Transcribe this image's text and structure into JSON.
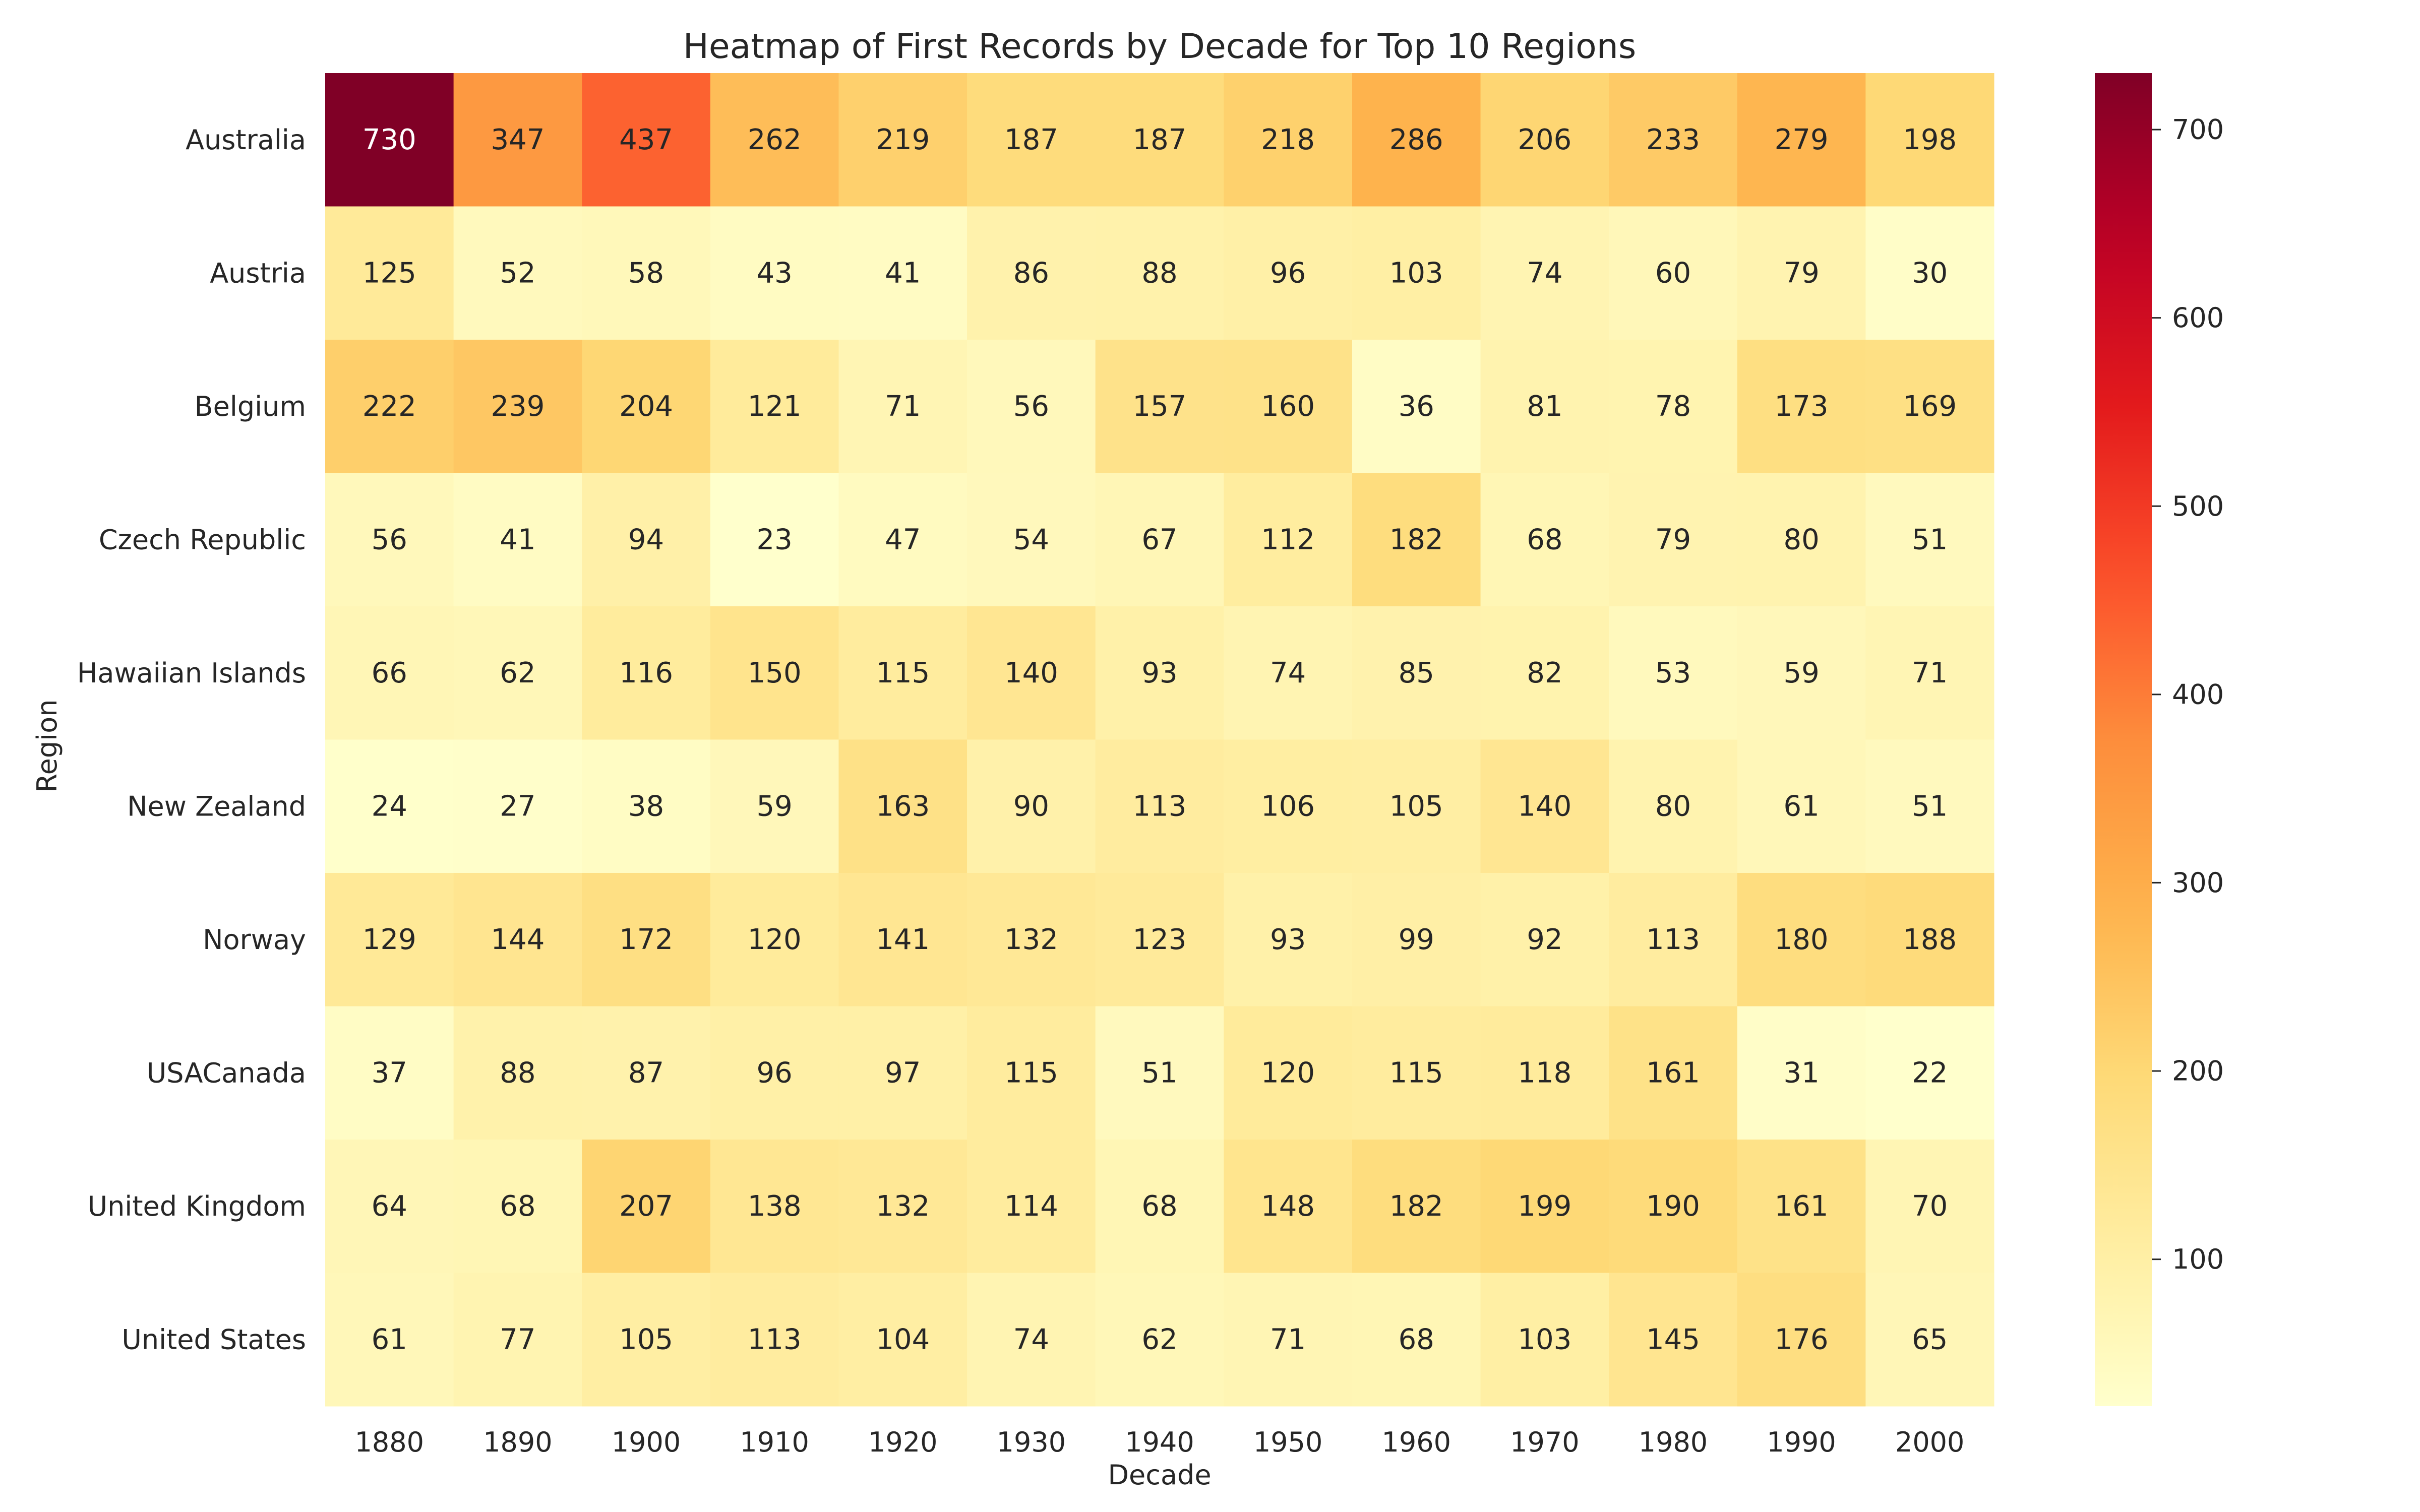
{
  "chart_data": {
    "type": "heatmap",
    "title": "Heatmap of First Records by Decade for Top 10 Regions",
    "xlabel": "Decade",
    "ylabel": "Region",
    "x_categories": [
      "1880",
      "1890",
      "1900",
      "1910",
      "1920",
      "1930",
      "1940",
      "1950",
      "1960",
      "1970",
      "1980",
      "1990",
      "2000"
    ],
    "y_categories": [
      "Australia",
      "Austria",
      "Belgium",
      "Czech Republic",
      "Hawaiian Islands",
      "New Zealand",
      "Norway",
      "USACanada",
      "United Kingdom",
      "United States"
    ],
    "values": [
      [
        730,
        347,
        437,
        262,
        219,
        187,
        187,
        218,
        286,
        206,
        233,
        279,
        198
      ],
      [
        125,
        52,
        58,
        43,
        41,
        86,
        88,
        96,
        103,
        74,
        60,
        79,
        30
      ],
      [
        222,
        239,
        204,
        121,
        71,
        56,
        157,
        160,
        36,
        81,
        78,
        173,
        169
      ],
      [
        56,
        41,
        94,
        23,
        47,
        54,
        67,
        112,
        182,
        68,
        79,
        80,
        51
      ],
      [
        66,
        62,
        116,
        150,
        115,
        140,
        93,
        74,
        85,
        82,
        53,
        59,
        71
      ],
      [
        24,
        27,
        38,
        59,
        163,
        90,
        113,
        106,
        105,
        140,
        80,
        61,
        51
      ],
      [
        129,
        144,
        172,
        120,
        141,
        132,
        123,
        93,
        99,
        92,
        113,
        180,
        188
      ],
      [
        37,
        88,
        87,
        96,
        97,
        115,
        51,
        120,
        115,
        118,
        161,
        31,
        22
      ],
      [
        64,
        68,
        207,
        138,
        132,
        114,
        68,
        148,
        182,
        199,
        190,
        161,
        70
      ],
      [
        61,
        77,
        105,
        113,
        104,
        74,
        62,
        71,
        68,
        103,
        145,
        176,
        65
      ]
    ],
    "colormap": "YlOrRd",
    "vmin": 22,
    "vmax": 730,
    "colorbar_ticks": [
      100,
      200,
      300,
      400,
      500,
      600,
      700
    ],
    "colorbar_tick_labels": [
      "100",
      "200",
      "300",
      "400",
      "500",
      "600",
      "700"
    ]
  }
}
